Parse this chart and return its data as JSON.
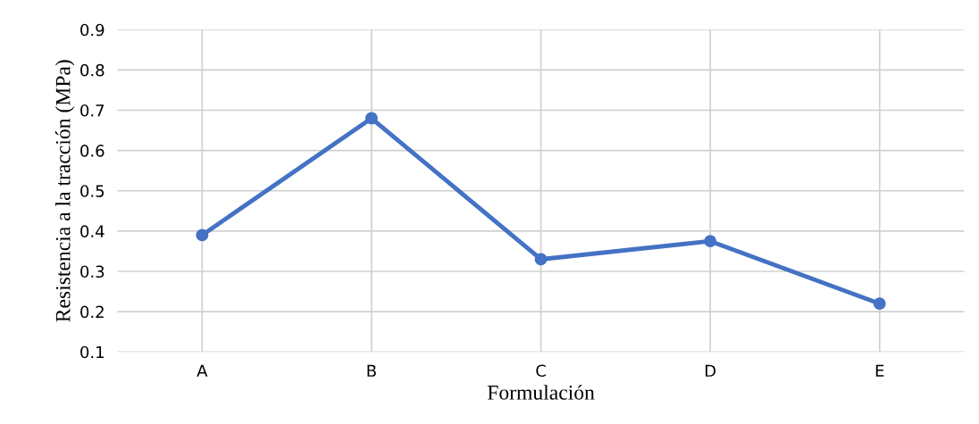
{
  "chart_data": {
    "type": "line",
    "xlabel": "Formulación",
    "ylabel": "Resistencia a la tracción (MPa)",
    "categories": [
      "A",
      "B",
      "C",
      "D",
      "E"
    ],
    "series": [
      {
        "color": "#4472c4",
        "values": [
          0.39,
          0.68,
          0.33,
          0.375,
          0.22
        ]
      }
    ],
    "ylim": [
      0.1,
      0.9
    ],
    "yticks": [
      0.1,
      0.2,
      0.3,
      0.4,
      0.5,
      0.6,
      0.7,
      0.8,
      0.9
    ],
    "grid": true,
    "marker": "circle",
    "line_style": "solid",
    "legend": false
  }
}
